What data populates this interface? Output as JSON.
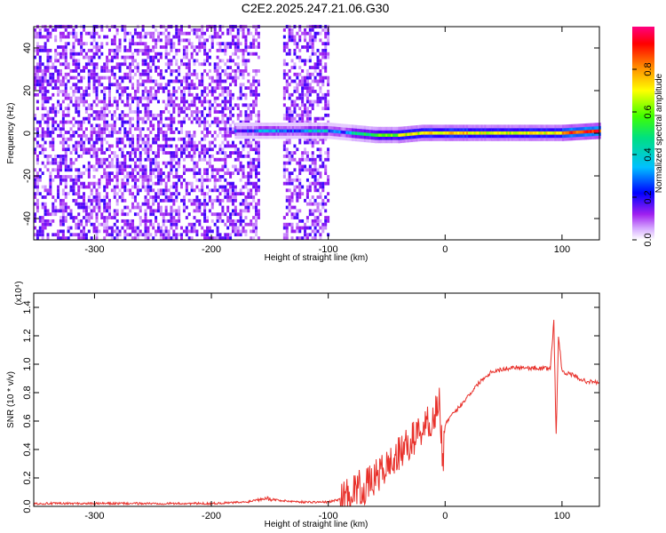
{
  "title": "C2E2.2025.247.21.06.G30",
  "chart_data": [
    {
      "type": "heatmap",
      "xlabel": "Height of straight line (km)",
      "ylabel": "Frequency (Hz)",
      "xlim": [
        -352,
        132
      ],
      "ylim": [
        -50,
        50
      ],
      "xticks": [
        -300,
        -200,
        -100,
        0,
        100
      ],
      "yticks": [
        -40,
        -20,
        0,
        20,
        40
      ],
      "colorbar": {
        "label": "Normalized spectral amplitude",
        "range": [
          0.0,
          1.0
        ],
        "ticks": [
          0.0,
          0.2,
          0.4,
          0.6,
          0.8
        ],
        "tick_labels": [
          "0.0",
          "0.2",
          "0.4",
          "0.6",
          "0.8"
        ],
        "colormap": [
          "#ffffff",
          "#a020f0",
          "#0000ff",
          "#00c0ff",
          "#00ff80",
          "#ffff00",
          "#ff8000",
          "#ff0000"
        ]
      },
      "description_points": {
        "noise_region_x": [
          -352,
          -100
        ],
        "gap_x": [
          -160,
          -140
        ],
        "signal_track": {
          "x": [
            -180,
            -160,
            -140,
            -120,
            -100,
            -80,
            -60,
            -40,
            -20,
            0,
            20,
            40,
            60,
            80,
            100,
            132
          ],
          "freq": [
            1,
            1,
            1,
            1,
            1,
            0,
            -1,
            -1,
            0,
            0,
            0,
            0,
            0,
            0,
            0,
            1
          ],
          "amplitude": [
            0.25,
            0.35,
            0.3,
            0.4,
            0.3,
            0.5,
            0.6,
            0.7,
            0.75,
            0.75,
            0.7,
            0.7,
            0.72,
            0.72,
            0.9,
            0.8
          ]
        }
      }
    },
    {
      "type": "line",
      "xlabel": "Height of straight line (km)",
      "ylabel": "SNR (10 * v/v)",
      "y_multiplier_label": "(x10⁴)",
      "xlim": [
        -352,
        132
      ],
      "ylim": [
        0.0,
        1.5
      ],
      "xticks": [
        -300,
        -200,
        -100,
        0,
        100
      ],
      "yticks": [
        0.0,
        0.2,
        0.4,
        0.6,
        0.8,
        1.0,
        1.2,
        1.4
      ],
      "ytick_labels": [
        "0.0",
        "0.2",
        "0.4",
        "0.6",
        "0.8",
        "1.0",
        "1.2",
        "1.4"
      ],
      "color": "#e8302a",
      "series": [
        {
          "x": [
            -352,
            -300,
            -250,
            -200,
            -170,
            -155,
            -140,
            -120,
            -100,
            -90,
            -80,
            -75,
            -70,
            -60,
            -50,
            -45,
            -40,
            -30,
            -20,
            -10,
            -5,
            -2,
            0,
            10,
            20,
            30,
            40,
            60,
            80,
            90,
            93,
            95,
            97,
            100,
            110,
            120,
            132
          ],
          "y": [
            0.02,
            0.02,
            0.02,
            0.02,
            0.03,
            0.06,
            0.04,
            0.03,
            0.03,
            0.05,
            0.1,
            0.14,
            0.12,
            0.2,
            0.28,
            0.32,
            0.36,
            0.45,
            0.55,
            0.62,
            0.75,
            0.3,
            0.58,
            0.68,
            0.78,
            0.88,
            0.95,
            0.98,
            0.97,
            0.97,
            1.3,
            0.5,
            1.2,
            0.95,
            0.92,
            0.88,
            0.87
          ]
        }
      ]
    }
  ]
}
